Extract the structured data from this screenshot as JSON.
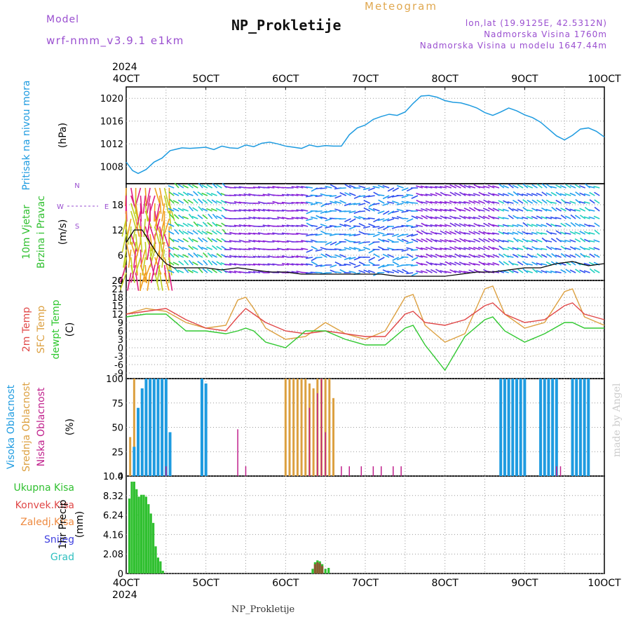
{
  "header": {
    "model_label": "Model",
    "model_run": "wrf-nmm_v3.9.1 e1km",
    "title": "NP_Prokletije",
    "meteogram": "Meteogram",
    "lonlat": "lon,lat (19.9125E, 42.5312N)",
    "altitude": "Nadmorska Visina 1760m",
    "model_altitude": "Nadmorska Visina u modelu 1647.44m"
  },
  "footer": {
    "station": "NP_Prokletije",
    "credit": "made by Angel"
  },
  "colors": {
    "pressure": "#1e9be0",
    "temp2m": "#e04848",
    "sfc": "#dca040",
    "dewpt": "#30c830",
    "high_cloud": "#1e9be0",
    "mid_cloud": "#dca040",
    "low_cloud": "#c0208c",
    "precip_total": "#30c030",
    "precip_conv": "#e04848",
    "precip_frozen": "#ee8a40",
    "snow": "#4040e0",
    "hail": "#30c0c0"
  },
  "chart_data": {
    "type": "meteogram",
    "x_ticks": [
      "4OCT",
      "5OCT",
      "6OCT",
      "7OCT",
      "8OCT",
      "9OCT",
      "10OCT"
    ],
    "year": "2024",
    "panels": [
      {
        "id": "pressure",
        "type": "line",
        "ylabel": "Pritisak na nivou mora",
        "unit": "(hPa)",
        "ylim": [
          1005,
          1022
        ],
        "yticks": [
          "1008",
          "1012",
          "1016",
          "1020"
        ],
        "x_days": [
          4.0,
          4.08,
          4.15,
          4.25,
          4.35,
          4.45,
          4.55,
          4.7,
          4.8,
          4.9,
          5.0,
          5.1,
          5.2,
          5.3,
          5.4,
          5.5,
          5.6,
          5.7,
          5.8,
          5.9,
          6.0,
          6.1,
          6.2,
          6.3,
          6.4,
          6.5,
          6.6,
          6.7,
          6.8,
          6.9,
          7.0,
          7.1,
          7.2,
          7.3,
          7.4,
          7.5,
          7.6,
          7.7,
          7.8,
          7.9,
          8.0,
          8.1,
          8.2,
          8.3,
          8.4,
          8.5,
          8.6,
          8.7,
          8.8,
          8.9,
          9.0,
          9.1,
          9.2,
          9.3,
          9.4,
          9.5,
          9.6,
          9.7,
          9.8,
          9.9,
          10.0
        ],
        "values": [
          1008.8,
          1007.3,
          1006.8,
          1007.5,
          1008.8,
          1009.5,
          1010.8,
          1011.3,
          1011.2,
          1011.3,
          1011.4,
          1011.0,
          1011.6,
          1011.3,
          1011.2,
          1011.8,
          1011.5,
          1012.1,
          1012.3,
          1012.0,
          1011.6,
          1011.4,
          1011.2,
          1011.8,
          1011.5,
          1011.7,
          1011.6,
          1011.6,
          1013.6,
          1014.8,
          1015.3,
          1016.3,
          1016.8,
          1017.2,
          1017.0,
          1017.6,
          1019.1,
          1020.4,
          1020.5,
          1020.2,
          1019.6,
          1019.3,
          1019.2,
          1018.8,
          1018.3,
          1017.5,
          1017.0,
          1017.6,
          1018.3,
          1017.8,
          1017.1,
          1016.6,
          1015.8,
          1014.6,
          1013.4,
          1012.7,
          1013.5,
          1014.6,
          1014.8,
          1014.2,
          1013.2
        ],
        "series_name": ""
      },
      {
        "id": "wind",
        "type": "barbs",
        "ylabel_1": "10m Vjetar",
        "ylabel_2": "Brzina i Pravac",
        "unit": "(m/s)",
        "compass_n": "N",
        "compass_e": "E",
        "compass_w": "W",
        "compass_s": "S",
        "ylim": [
          0,
          23
        ],
        "yticks": [
          "0",
          "6",
          "12",
          "18"
        ],
        "x_days": [
          4.0,
          4.1,
          4.2,
          4.3,
          4.4,
          4.5,
          4.6,
          4.8,
          5.0,
          5.2,
          5.4,
          5.6,
          5.8,
          6.0,
          6.2,
          6.4,
          6.6,
          6.8,
          7.0,
          7.2,
          7.4,
          7.6,
          7.8,
          8.0,
          8.2,
          8.4,
          8.6,
          8.8,
          9.0,
          9.2,
          9.4,
          9.6,
          9.8,
          10.0
        ],
        "speed": [
          9,
          12,
          12,
          9,
          6,
          4,
          3,
          3,
          3,
          2.5,
          3,
          2.5,
          2,
          2,
          1.5,
          1.5,
          1.5,
          1.5,
          1.5,
          1.5,
          1,
          1,
          1,
          1,
          1.5,
          2,
          2,
          2.5,
          3,
          3,
          4,
          4.5,
          3.5,
          4
        ]
      },
      {
        "id": "temperature",
        "type": "line",
        "ylabel_1": "2m Temp",
        "ylabel_2": "SFC Temp",
        "ylabel_3": "dewpt Temp",
        "unit": "(C)",
        "ylim": [
          -11,
          24
        ],
        "yticks": [
          "-9",
          "-6",
          "-3",
          "0",
          "3",
          "6",
          "9",
          "12",
          "15",
          "18",
          "21",
          "24"
        ],
        "x_days": [
          4.0,
          4.25,
          4.5,
          4.75,
          5.0,
          5.25,
          5.4,
          5.5,
          5.6,
          5.75,
          6.0,
          6.25,
          6.5,
          6.75,
          7.0,
          7.25,
          7.5,
          7.6,
          7.75,
          8.0,
          8.25,
          8.5,
          8.6,
          8.75,
          9.0,
          9.25,
          9.5,
          9.6,
          9.75,
          10.0
        ],
        "temp2m": [
          12,
          13,
          14,
          10,
          7,
          6,
          11,
          14,
          12,
          9,
          6,
          5,
          6,
          5,
          4,
          4,
          12,
          13,
          9,
          8,
          10,
          15,
          16,
          12,
          9,
          10,
          15,
          16,
          12,
          10
        ],
        "sfc": [
          12,
          14,
          13,
          9,
          7,
          8,
          17,
          18,
          14,
          7,
          3,
          4,
          9,
          5,
          3,
          6,
          18,
          19,
          8,
          2,
          5,
          21,
          22,
          12,
          7,
          9,
          20,
          21,
          11,
          8
        ],
        "dewpt": [
          11,
          12,
          12,
          6,
          6,
          5,
          6,
          7,
          6,
          2,
          0,
          6,
          6,
          3,
          1,
          1,
          7,
          8,
          1,
          -8,
          4,
          10,
          11,
          6,
          2,
          5,
          9,
          9,
          7,
          7
        ]
      },
      {
        "id": "clouds",
        "type": "bar",
        "ylabel_1": "Visoka Oblacnost",
        "ylabel_2": "Srednja Oblacnost",
        "ylabel_3": "Niska Oblacnost",
        "unit": "(%)",
        "ylim": [
          0,
          100
        ],
        "yticks": [
          "0",
          "25",
          "50",
          "75",
          "100"
        ],
        "high": [
          {
            "x": 4.1,
            "v": 30
          },
          {
            "x": 4.15,
            "v": 70
          },
          {
            "x": 4.2,
            "v": 90
          },
          {
            "x": 4.25,
            "v": 100
          },
          {
            "x": 4.3,
            "v": 100
          },
          {
            "x": 4.35,
            "v": 100
          },
          {
            "x": 4.4,
            "v": 100
          },
          {
            "x": 4.45,
            "v": 100
          },
          {
            "x": 4.5,
            "v": 100
          },
          {
            "x": 4.55,
            "v": 45
          },
          {
            "x": 4.95,
            "v": 100
          },
          {
            "x": 5.0,
            "v": 95
          },
          {
            "x": 8.7,
            "v": 100
          },
          {
            "x": 8.75,
            "v": 100
          },
          {
            "x": 8.8,
            "v": 100
          },
          {
            "x": 8.85,
            "v": 100
          },
          {
            "x": 8.9,
            "v": 100
          },
          {
            "x": 8.95,
            "v": 100
          },
          {
            "x": 9.0,
            "v": 100
          },
          {
            "x": 9.2,
            "v": 100
          },
          {
            "x": 9.25,
            "v": 100
          },
          {
            "x": 9.3,
            "v": 100
          },
          {
            "x": 9.35,
            "v": 100
          },
          {
            "x": 9.4,
            "v": 100
          },
          {
            "x": 9.6,
            "v": 100
          },
          {
            "x": 9.65,
            "v": 100
          },
          {
            "x": 9.7,
            "v": 100
          },
          {
            "x": 9.75,
            "v": 100
          },
          {
            "x": 9.8,
            "v": 100
          }
        ],
        "mid": [
          {
            "x": 4.05,
            "v": 40
          },
          {
            "x": 4.1,
            "v": 100
          },
          {
            "x": 4.3,
            "v": 30
          },
          {
            "x": 6.0,
            "v": 100
          },
          {
            "x": 6.05,
            "v": 100
          },
          {
            "x": 6.1,
            "v": 100
          },
          {
            "x": 6.15,
            "v": 100
          },
          {
            "x": 6.2,
            "v": 100
          },
          {
            "x": 6.25,
            "v": 100
          },
          {
            "x": 6.3,
            "v": 95
          },
          {
            "x": 6.35,
            "v": 90
          },
          {
            "x": 6.4,
            "v": 100
          },
          {
            "x": 6.45,
            "v": 100
          },
          {
            "x": 6.5,
            "v": 100
          },
          {
            "x": 6.55,
            "v": 100
          },
          {
            "x": 6.6,
            "v": 80
          }
        ],
        "low": [
          {
            "x": 4.5,
            "v": 10
          },
          {
            "x": 5.4,
            "v": 48
          },
          {
            "x": 5.5,
            "v": 10
          },
          {
            "x": 6.3,
            "v": 70
          },
          {
            "x": 6.4,
            "v": 85
          },
          {
            "x": 6.45,
            "v": 100
          },
          {
            "x": 6.5,
            "v": 45
          },
          {
            "x": 6.7,
            "v": 10
          },
          {
            "x": 6.8,
            "v": 10
          },
          {
            "x": 6.95,
            "v": 10
          },
          {
            "x": 7.1,
            "v": 10
          },
          {
            "x": 7.2,
            "v": 10
          },
          {
            "x": 7.35,
            "v": 10
          },
          {
            "x": 7.45,
            "v": 10
          },
          {
            "x": 9.4,
            "v": 10
          },
          {
            "x": 9.45,
            "v": 10
          }
        ]
      },
      {
        "id": "precip",
        "type": "bar",
        "label_total": "Ukupna Kisa",
        "label_conv": "Konvek.Kisa",
        "label_frozen": "Zaledj.Kisa",
        "label_snow": "Snijeg",
        "label_hail": "Grad",
        "ylabel_1": "1hr Precip",
        "unit": "(mm)",
        "ylim": [
          0,
          10.4
        ],
        "yticks": [
          "0",
          "2.08",
          "4.16",
          "6.24",
          "8.32",
          "10.4"
        ],
        "total": [
          {
            "x": 4.04,
            "v": 8.0
          },
          {
            "x": 4.07,
            "v": 9.8
          },
          {
            "x": 4.1,
            "v": 9.8
          },
          {
            "x": 4.13,
            "v": 9.0
          },
          {
            "x": 4.16,
            "v": 8.2
          },
          {
            "x": 4.19,
            "v": 8.4
          },
          {
            "x": 4.22,
            "v": 8.4
          },
          {
            "x": 4.25,
            "v": 8.2
          },
          {
            "x": 4.28,
            "v": 7.4
          },
          {
            "x": 4.31,
            "v": 6.4
          },
          {
            "x": 4.34,
            "v": 5.4
          },
          {
            "x": 4.37,
            "v": 2.9
          },
          {
            "x": 4.4,
            "v": 1.7
          },
          {
            "x": 4.43,
            "v": 1.3
          },
          {
            "x": 4.46,
            "v": 0.3
          },
          {
            "x": 6.34,
            "v": 0.5
          },
          {
            "x": 6.37,
            "v": 1.2
          },
          {
            "x": 6.4,
            "v": 1.4
          },
          {
            "x": 6.43,
            "v": 1.3
          },
          {
            "x": 6.46,
            "v": 1.0
          },
          {
            "x": 6.5,
            "v": 0.5
          },
          {
            "x": 6.54,
            "v": 0.6
          }
        ],
        "conv": [
          {
            "x": 6.37,
            "v": 1.0
          },
          {
            "x": 6.4,
            "v": 1.2
          },
          {
            "x": 6.43,
            "v": 1.1
          },
          {
            "x": 6.46,
            "v": 0.8
          }
        ]
      }
    ]
  }
}
